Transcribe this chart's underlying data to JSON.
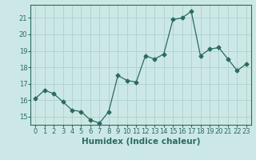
{
  "xlabel": "Humidex (Indice chaleur)",
  "ylabel": "",
  "x": [
    0,
    1,
    2,
    3,
    4,
    5,
    6,
    7,
    8,
    9,
    10,
    11,
    12,
    13,
    14,
    15,
    16,
    17,
    18,
    19,
    20,
    21,
    22,
    23
  ],
  "y": [
    16.1,
    16.6,
    16.4,
    15.9,
    15.4,
    15.3,
    14.8,
    14.6,
    15.3,
    17.5,
    17.2,
    17.1,
    18.7,
    18.5,
    18.8,
    20.9,
    21.0,
    21.4,
    18.7,
    19.1,
    19.2,
    18.5,
    17.8,
    18.2
  ],
  "line_color": "#2a6b5e",
  "marker": "D",
  "marker_size": 2.5,
  "bg_color": "#cce8e6",
  "grid_color": "#b0d0ce",
  "ylim": [
    14.5,
    21.8
  ],
  "yticks": [
    15,
    16,
    17,
    18,
    19,
    20,
    21
  ],
  "xlim": [
    -0.5,
    23.5
  ],
  "xticks": [
    0,
    1,
    2,
    3,
    4,
    5,
    6,
    7,
    8,
    9,
    10,
    11,
    12,
    13,
    14,
    15,
    16,
    17,
    18,
    19,
    20,
    21,
    22,
    23
  ],
  "tick_fontsize": 6,
  "xlabel_fontsize": 7.5,
  "tick_color": "#2a6b5e",
  "label_color": "#2a6b5e"
}
